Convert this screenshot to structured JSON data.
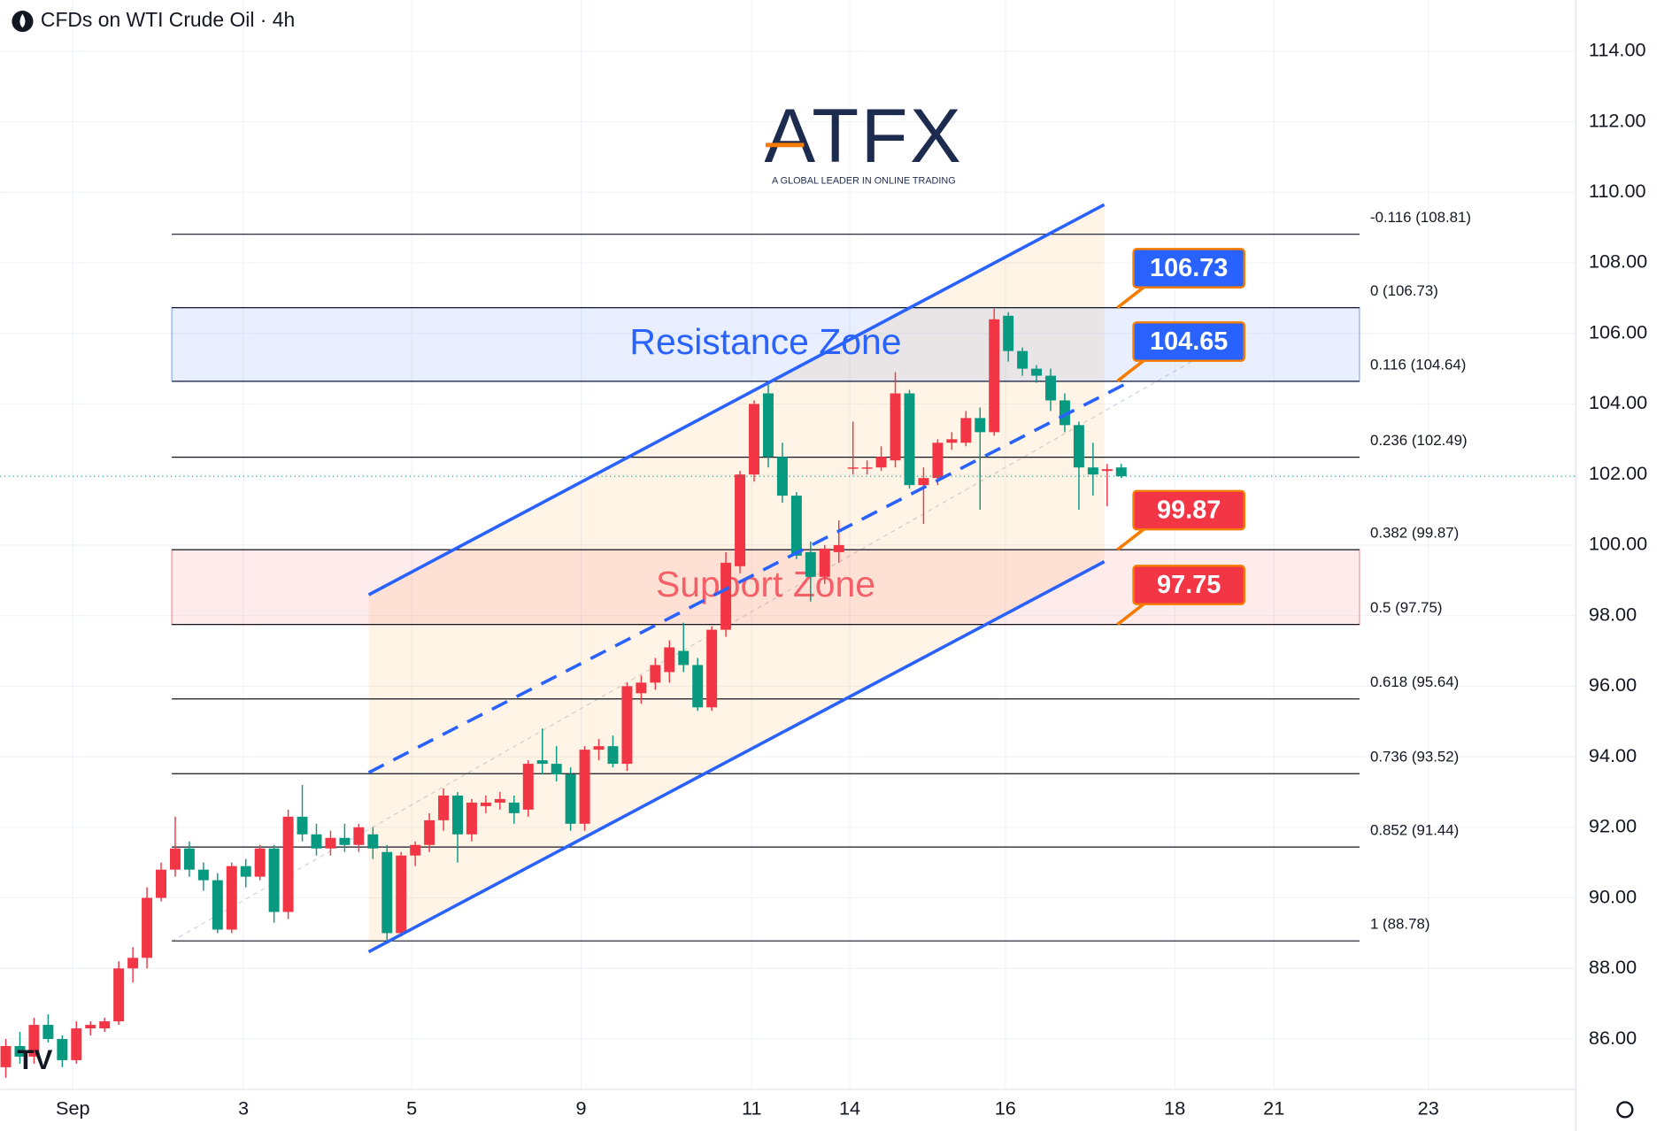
{
  "chart_data": {
    "type": "candlestick",
    "title": "CFDs on WTI Crude Oil · 4h",
    "logo": {
      "name": "ATFX",
      "tagline": "A GLOBAL LEADER IN ONLINE TRADING"
    },
    "up_color": "#f23645",
    "down_color": "#089981",
    "open": [
      85.2,
      85.8,
      85.5,
      86.4,
      86.0,
      85.4,
      86.3,
      86.3,
      86.5,
      88.0,
      88.3,
      90.0,
      90.8,
      91.4,
      90.8,
      90.5,
      89.1,
      90.9,
      90.6,
      91.4,
      89.6,
      92.3,
      91.8,
      91.4,
      91.7,
      91.5,
      91.8,
      91.3,
      89.0,
      91.2,
      91.5,
      92.2,
      92.9,
      91.8,
      92.6,
      92.7,
      92.7,
      92.5,
      93.9,
      93.8,
      93.5,
      92.1,
      94.2,
      94.3,
      93.8,
      95.8,
      96.1,
      96.4,
      97.0,
      96.6,
      95.4,
      97.6,
      99.4,
      102.0,
      104.3,
      102.5,
      101.4,
      99.8,
      99.1,
      99.8,
      102.2,
      102.2,
      102.2,
      102.4,
      104.3,
      101.7,
      101.9,
      102.9,
      102.9,
      103.6,
      103.2,
      106.5,
      105.5,
      105.0,
      104.8,
      104.1,
      103.4,
      102.2,
      102.1,
      102.2
    ],
    "high": [
      86.0,
      86.2,
      86.6,
      86.7,
      86.1,
      86.5,
      86.5,
      86.6,
      88.2,
      88.6,
      90.3,
      91.0,
      92.3,
      91.6,
      91.0,
      90.7,
      91.0,
      91.1,
      91.5,
      91.5,
      92.5,
      93.2,
      92.1,
      91.9,
      92.1,
      92.1,
      92.0,
      91.5,
      91.3,
      91.6,
      92.4,
      93.1,
      93.0,
      92.8,
      92.9,
      93.0,
      92.9,
      93.9,
      94.8,
      94.3,
      93.7,
      94.3,
      94.5,
      94.6,
      96.1,
      96.3,
      96.8,
      97.3,
      97.8,
      96.8,
      97.7,
      99.8,
      102.1,
      104.1,
      104.6,
      102.9,
      101.5,
      100.1,
      100.0,
      100.7,
      103.5,
      102.4,
      102.8,
      104.9,
      104.4,
      102.2,
      103.0,
      103.2,
      103.8,
      103.9,
      106.7,
      106.6,
      105.6,
      105.1,
      105.0,
      104.3,
      103.5,
      102.9,
      102.3,
      102.3
    ],
    "low": [
      84.9,
      85.3,
      85.3,
      85.9,
      85.2,
      85.3,
      86.1,
      86.2,
      86.4,
      87.6,
      88.0,
      89.9,
      90.6,
      90.6,
      90.2,
      89.0,
      89.0,
      90.3,
      90.5,
      89.3,
      89.4,
      91.6,
      91.2,
      91.2,
      91.3,
      91.3,
      91.1,
      88.7,
      88.9,
      90.9,
      91.3,
      91.9,
      91.0,
      91.6,
      92.4,
      92.5,
      92.1,
      92.3,
      93.5,
      93.3,
      91.9,
      91.9,
      93.9,
      93.7,
      93.6,
      95.5,
      95.9,
      96.1,
      96.4,
      95.3,
      95.3,
      97.4,
      99.2,
      101.8,
      102.2,
      101.2,
      99.6,
      98.4,
      98.9,
      99.5,
      102.0,
      102.0,
      102.1,
      102.2,
      101.6,
      100.6,
      101.7,
      102.7,
      102.8,
      101.0,
      103.1,
      105.2,
      104.8,
      104.6,
      103.8,
      103.2,
      101.0,
      101.4,
      101.1,
      101.9
    ],
    "close": [
      85.8,
      85.5,
      86.4,
      86.0,
      85.4,
      86.3,
      86.4,
      86.5,
      88.0,
      88.3,
      90.0,
      90.8,
      91.4,
      90.8,
      90.5,
      89.1,
      90.9,
      90.6,
      91.4,
      89.6,
      92.3,
      91.8,
      91.4,
      91.7,
      91.5,
      92.0,
      91.4,
      89.0,
      91.2,
      91.5,
      92.2,
      92.9,
      91.8,
      92.7,
      92.7,
      92.8,
      92.4,
      93.8,
      93.8,
      93.5,
      92.1,
      94.2,
      94.3,
      93.8,
      96.0,
      96.1,
      96.6,
      97.1,
      96.6,
      95.4,
      97.6,
      99.5,
      102.0,
      104.0,
      102.5,
      101.4,
      99.7,
      99.1,
      99.9,
      100.0,
      102.2,
      102.2,
      102.5,
      104.3,
      101.7,
      101.9,
      102.9,
      103.0,
      103.6,
      103.2,
      106.4,
      105.5,
      105.0,
      104.8,
      104.1,
      103.4,
      102.2,
      102.0,
      102.15,
      101.95
    ],
    "xlim": [
      -0.4,
      111.2
    ],
    "xticks": [
      {
        "value": 4.75,
        "label": "Sep"
      },
      {
        "value": 16.83,
        "label": "3"
      },
      {
        "value": 28.75,
        "label": "5"
      },
      {
        "value": 40.75,
        "label": "9"
      },
      {
        "value": 52.83,
        "label": "11"
      },
      {
        "value": 59.77,
        "label": "14"
      },
      {
        "value": 70.79,
        "label": "16"
      },
      {
        "value": 82.79,
        "label": "18"
      },
      {
        "value": 89.81,
        "label": "21"
      },
      {
        "value": 100.75,
        "label": "23"
      }
    ],
    "ylim": [
      84.57,
      115.45
    ],
    "yticks": [
      {
        "value": 86,
        "label": "86.00"
      },
      {
        "value": 88,
        "label": "88.00"
      },
      {
        "value": 90,
        "label": "90.00"
      },
      {
        "value": 92,
        "label": "92.00"
      },
      {
        "value": 94,
        "label": "94.00"
      },
      {
        "value": 96,
        "label": "96.00"
      },
      {
        "value": 98,
        "label": "98.00"
      },
      {
        "value": 100,
        "label": "100.00"
      },
      {
        "value": 102,
        "label": "102.00"
      },
      {
        "value": 104,
        "label": "104.00"
      },
      {
        "value": 106,
        "label": "106.00"
      },
      {
        "value": 108,
        "label": "108.00"
      },
      {
        "value": 110,
        "label": "110.00"
      },
      {
        "value": 112,
        "label": "112.00"
      },
      {
        "value": 114,
        "label": "114.00"
      }
    ],
    "fib_levels": [
      {
        "value": 108.81,
        "label": "-0.116 (108.81)"
      },
      {
        "value": 106.73,
        "label": "0 (106.73)"
      },
      {
        "value": 104.64,
        "label": "0.116 (104.64)"
      },
      {
        "value": 102.49,
        "label": "0.236 (102.49)"
      },
      {
        "value": 99.87,
        "label": "0.382 (99.87)"
      },
      {
        "value": 97.75,
        "label": "0.5 (97.75)"
      },
      {
        "value": 95.64,
        "label": "0.618 (95.64)"
      },
      {
        "value": 93.52,
        "label": "0.736 (93.52)"
      },
      {
        "value": 91.44,
        "label": "0.852 (91.44)"
      },
      {
        "value": 88.78,
        "label": "1 (88.78)"
      }
    ],
    "zones": [
      {
        "label": "Resistance Zone",
        "from": 104.65,
        "to": 106.73,
        "color": "#2962ff"
      },
      {
        "label": "Support Zone",
        "from": 97.75,
        "to": 99.87,
        "color": "#f23645"
      }
    ],
    "channel": {
      "x": [
        25.7,
        77.8
      ],
      "upper": [
        98.59,
        109.65
      ],
      "lower": [
        88.47,
        99.53
      ],
      "mid_x": [
        25.7,
        79.6
      ],
      "mid": [
        93.55,
        104.63
      ],
      "color": "#2962ff"
    },
    "callouts": [
      {
        "value": 106.73,
        "color": "#2962ff"
      },
      {
        "value": 104.65,
        "color": "#2962ff"
      },
      {
        "value": 99.87,
        "color": "#f23645"
      },
      {
        "value": 97.75,
        "color": "#f23645"
      }
    ]
  }
}
